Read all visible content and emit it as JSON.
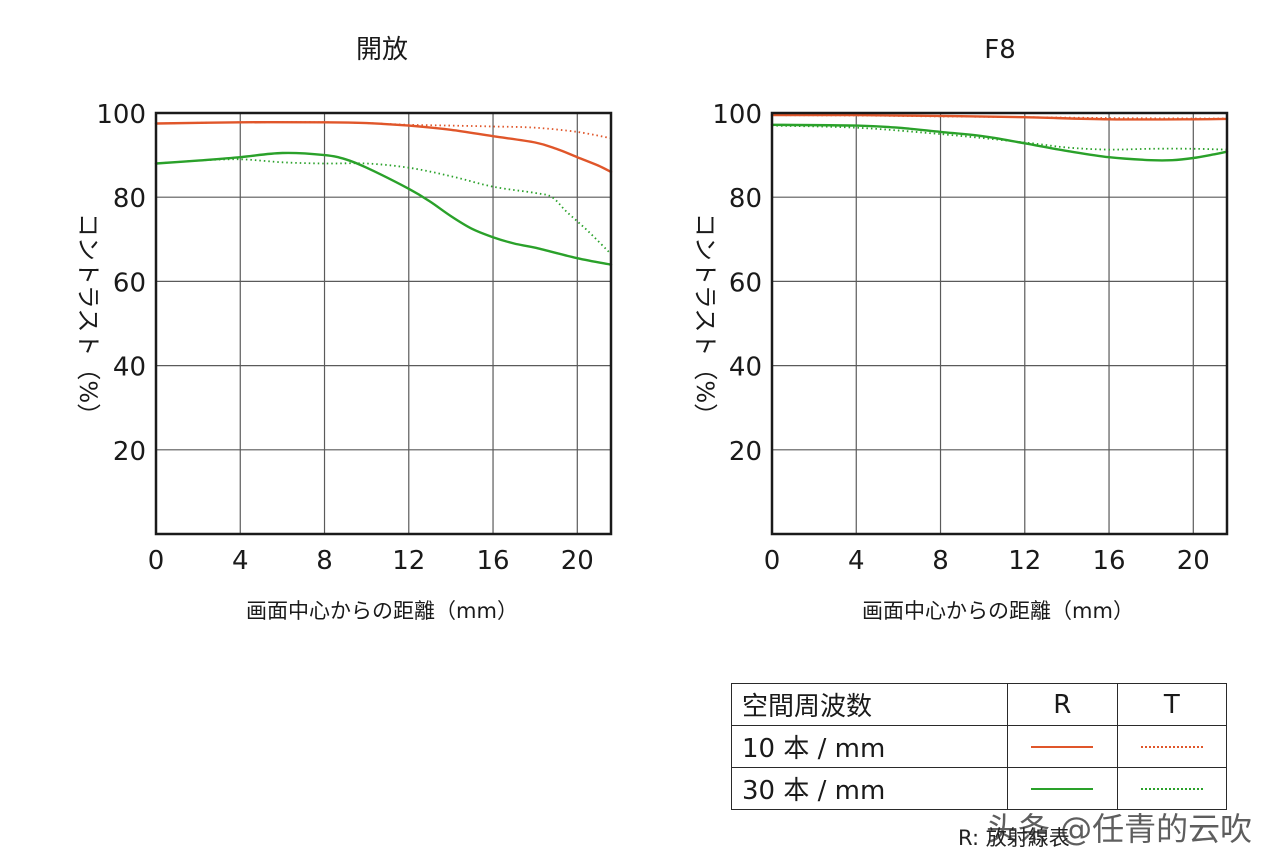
{
  "colors": {
    "r10": "#e0562a",
    "r30": "#2aa12a",
    "grid": "#5a5a5a",
    "frame": "#1a1a1a"
  },
  "chart_data": [
    {
      "type": "line",
      "title": "開放",
      "xlabel": "画面中心からの距離（mm）",
      "ylabel": "コントラスト（%）",
      "xlim": [
        0,
        21.6
      ],
      "ylim": [
        0,
        100
      ],
      "x_ticks": [
        "0",
        "4",
        "8",
        "12",
        "16",
        "20"
      ],
      "x_tick_values": [
        0,
        4,
        8,
        12,
        16,
        20
      ],
      "y_ticks": [
        "20",
        "40",
        "60",
        "80",
        "100"
      ],
      "y_tick_values": [
        20,
        40,
        60,
        80,
        100
      ],
      "grid": true,
      "series": [
        {
          "name": "10 本 / mm R",
          "style": "solid",
          "color": "#e0562a",
          "x": [
            0,
            4,
            8,
            10,
            12,
            14,
            16,
            18,
            19,
            20,
            21,
            21.6
          ],
          "y": [
            97.5,
            97.8,
            97.8,
            97.6,
            97,
            96,
            94.5,
            93,
            91.5,
            89.5,
            87.5,
            86
          ]
        },
        {
          "name": "10 本 / mm T",
          "style": "dotted",
          "color": "#e0562a",
          "x": [
            0,
            4,
            8,
            10,
            12,
            14,
            16,
            18,
            20,
            21.6
          ],
          "y": [
            97.5,
            97.8,
            97.8,
            97.6,
            97.2,
            97,
            96.8,
            96.5,
            95.5,
            94
          ]
        },
        {
          "name": "30 本 / mm R",
          "style": "solid",
          "color": "#2aa12a",
          "x": [
            0,
            2,
            4,
            6,
            8,
            9,
            10,
            12,
            13,
            14,
            15,
            16,
            17,
            18,
            20,
            21.6
          ],
          "y": [
            88,
            88.7,
            89.5,
            90.5,
            90,
            89,
            87,
            82,
            79,
            75.5,
            72.5,
            70.5,
            69,
            68,
            65.5,
            64
          ]
        },
        {
          "name": "30 本 / mm T",
          "style": "dotted",
          "color": "#2aa12a",
          "x": [
            0,
            2,
            4,
            6,
            8,
            10,
            12,
            14,
            16,
            18,
            18.8,
            19.5,
            20.5,
            21.6
          ],
          "y": [
            88,
            88.7,
            89,
            88.3,
            88,
            88,
            87,
            85,
            82.5,
            81,
            80,
            76.5,
            72,
            66.5
          ]
        }
      ]
    },
    {
      "type": "line",
      "title": "F8",
      "xlabel": "画面中心からの距離（mm）",
      "ylabel": "コントラスト（%）",
      "xlim": [
        0,
        21.6
      ],
      "ylim": [
        0,
        100
      ],
      "x_ticks": [
        "0",
        "4",
        "8",
        "12",
        "16",
        "20"
      ],
      "x_tick_values": [
        0,
        4,
        8,
        12,
        16,
        20
      ],
      "y_ticks": [
        "20",
        "40",
        "60",
        "80",
        "100"
      ],
      "y_tick_values": [
        20,
        40,
        60,
        80,
        100
      ],
      "grid": true,
      "series": [
        {
          "name": "10 本 / mm R",
          "style": "solid",
          "color": "#e0562a",
          "x": [
            0,
            4,
            8,
            12,
            16,
            20,
            21.6
          ],
          "y": [
            99.5,
            99.5,
            99.3,
            99,
            98.5,
            98.5,
            98.6
          ]
        },
        {
          "name": "10 本 / mm T",
          "style": "dotted",
          "color": "#e0562a",
          "x": [
            0,
            4,
            8,
            12,
            16,
            20,
            21.6
          ],
          "y": [
            99.5,
            99.4,
            99.2,
            99,
            98.8,
            98.7,
            98.7
          ]
        },
        {
          "name": "30 本 / mm R",
          "style": "solid",
          "color": "#2aa12a",
          "x": [
            0,
            4,
            6,
            8,
            10,
            12,
            14,
            16,
            18,
            19,
            20,
            21,
            21.6
          ],
          "y": [
            97.2,
            97,
            96.5,
            95.5,
            94.5,
            92.8,
            91,
            89.5,
            88.8,
            88.8,
            89.3,
            90.2,
            90.8
          ]
        },
        {
          "name": "30 本 / mm T",
          "style": "dotted",
          "color": "#2aa12a",
          "x": [
            0,
            4,
            8,
            12,
            14,
            16,
            18,
            20,
            21.6
          ],
          "y": [
            97,
            96.5,
            95,
            93,
            91.8,
            91.3,
            91.5,
            91.5,
            91.3
          ]
        }
      ]
    }
  ],
  "legend": {
    "header": {
      "label": "空間周波数",
      "r": "R",
      "t": "T"
    },
    "rows": [
      {
        "label": "10 本 / mm",
        "color": "#e0562a"
      },
      {
        "label": "30 本 / mm",
        "color": "#2aa12a"
      }
    ]
  },
  "footnote": "R: 放射線表",
  "watermark": "头条 @任青的云吹"
}
